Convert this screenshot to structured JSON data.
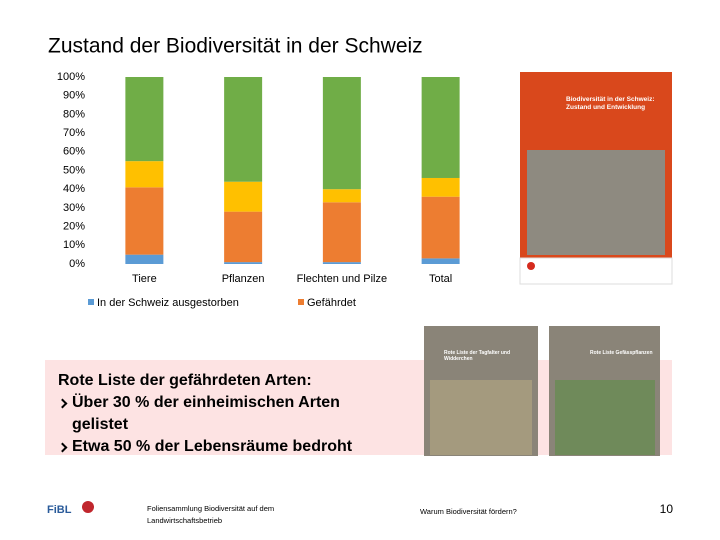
{
  "title": "Zustand der Biodiversität in der Schweiz",
  "chart_data": {
    "type": "stacked_bar",
    "categories": [
      "Tiere",
      "Pflanzen",
      "Flechten und Pilze",
      "Total"
    ],
    "series": [
      {
        "name": "In der Schweiz ausgestorben",
        "color": "#5b9bd5",
        "values": [
          5,
          1,
          1,
          3
        ]
      },
      {
        "name": "Gefährdet",
        "color": "#ed7d31",
        "values": [
          36,
          27,
          32,
          33
        ]
      },
      {
        "color": "#ffc000",
        "values": [
          14,
          16,
          7,
          10
        ]
      },
      {
        "color": "#70ad47",
        "values": [
          45,
          56,
          60,
          54
        ]
      }
    ],
    "ylim": [
      0,
      100
    ],
    "yticks": [
      {
        "value": 0,
        "label": "0%"
      },
      {
        "value": 10,
        "label": "10%"
      },
      {
        "value": 20,
        "label": "20%"
      },
      {
        "value": 30,
        "label": "30%"
      },
      {
        "value": 40,
        "label": "40%"
      },
      {
        "value": 50,
        "label": "50%"
      },
      {
        "value": 60,
        "label": "60%"
      },
      {
        "value": 70,
        "label": "70%"
      },
      {
        "value": 80,
        "label": "80%"
      },
      {
        "value": 90,
        "label": "90%"
      },
      {
        "value": 100,
        "label": "100%"
      }
    ],
    "grid": false,
    "legend": "bottom"
  },
  "covers": [
    "Biodiversität in der Schweiz: Zustand und Entwicklung",
    "Rote Liste der Tagfalter und Widderchen",
    "Rote Liste Gefässpflanzen"
  ],
  "box": {
    "heading": "Rote Liste der gefährdeten Arten:",
    "bullets": [
      "Über 30 % der einheimischen Arten gelistet",
      "Etwa 50 % der Lebensräume bedroht"
    ]
  },
  "footer": {
    "logo": "FiBL",
    "left": [
      "Foliensammlung Biodiversität auf dem",
      "Landwirtschaftsbetrieb"
    ],
    "center": "Warum Biodiversität fördern?",
    "page": "10"
  }
}
